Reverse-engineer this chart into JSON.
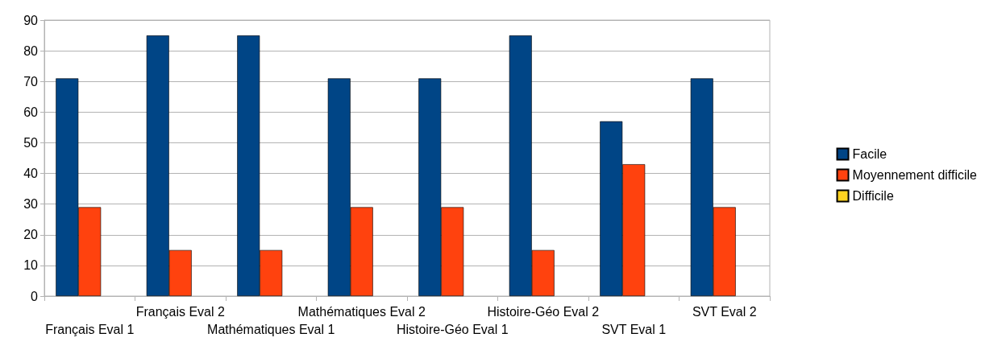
{
  "chart_data": {
    "type": "bar",
    "categories": [
      "Français Eval 1",
      "Français Eval 2",
      "Mathématiques Eval 1",
      "Mathématiques Eval 2",
      "Histoire-Géo Eval 1",
      "Histoire-Géo Eval 2",
      "SVT Eval 1",
      "SVT Eval 2"
    ],
    "series": [
      {
        "name": "Facile",
        "color": "#004586",
        "values": [
          71,
          85,
          85,
          71,
          71,
          85,
          57,
          71
        ]
      },
      {
        "name": "Moyennement difficile",
        "color": "#ff420e",
        "values": [
          29,
          15,
          15,
          29,
          29,
          15,
          43,
          29
        ]
      },
      {
        "name": "Difficile",
        "color": "#ffd320",
        "values": [
          0,
          0,
          0,
          0,
          0,
          0,
          0,
          0
        ]
      }
    ],
    "ylim": [
      0,
      90
    ],
    "yticks": [
      0,
      10,
      20,
      30,
      40,
      50,
      60,
      70,
      80,
      90
    ],
    "grid": "y",
    "legend": "right"
  }
}
